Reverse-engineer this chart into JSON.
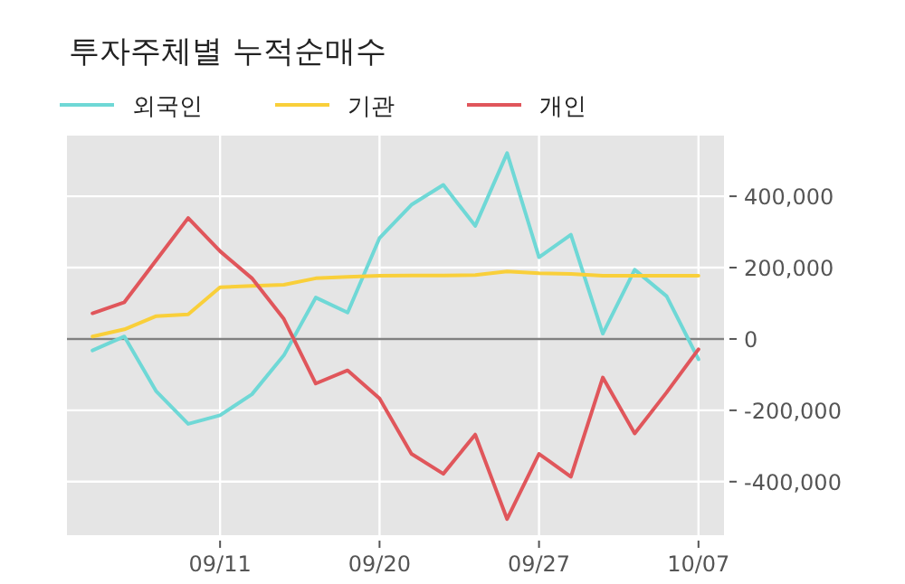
{
  "chart_data": {
    "type": "line",
    "title": "투자주체별 누적순매수",
    "categories": [
      null,
      null,
      null,
      null,
      "09/11",
      null,
      null,
      null,
      null,
      "09/20",
      null,
      null,
      null,
      null,
      "09/27",
      null,
      null,
      null,
      null,
      "10/07"
    ],
    "series": [
      {
        "name": "외국인",
        "color": "#6fd8d6",
        "values": [
          -32000,
          7000,
          -147000,
          -238000,
          -214000,
          -155000,
          -46000,
          116000,
          74000,
          283000,
          376000,
          432000,
          317000,
          521000,
          229000,
          292000,
          15000,
          194000,
          120000,
          -57000
        ]
      },
      {
        "name": "기관",
        "color": "#f9cf3a",
        "values": [
          7000,
          27000,
          64000,
          69000,
          145000,
          149000,
          152000,
          170000,
          174000,
          177000,
          178000,
          178000,
          179000,
          189000,
          184000,
          182000,
          177000,
          177000,
          177000,
          177000
        ]
      },
      {
        "name": "개인",
        "color": "#e0565b",
        "values": [
          72000,
          103000,
          221000,
          339000,
          246000,
          170000,
          56000,
          -125000,
          -88000,
          -167000,
          -322000,
          -378000,
          -268000,
          -505000,
          -322000,
          -386000,
          -108000,
          -265000,
          -150000,
          -29000
        ]
      }
    ],
    "ylim": [
      -550000,
      570000
    ],
    "yticks": [
      {
        "value": -400000,
        "label": "-400,000"
      },
      {
        "value": -200000,
        "label": "-200,000"
      },
      0,
      {
        "value": 200000,
        "label": "200,000"
      },
      {
        "value": 400000,
        "label": "400,000"
      }
    ],
    "ref_lines": [
      {
        "axis": "y",
        "value": 0,
        "color": "#808080"
      }
    ],
    "grid": true,
    "legend": "top left"
  }
}
